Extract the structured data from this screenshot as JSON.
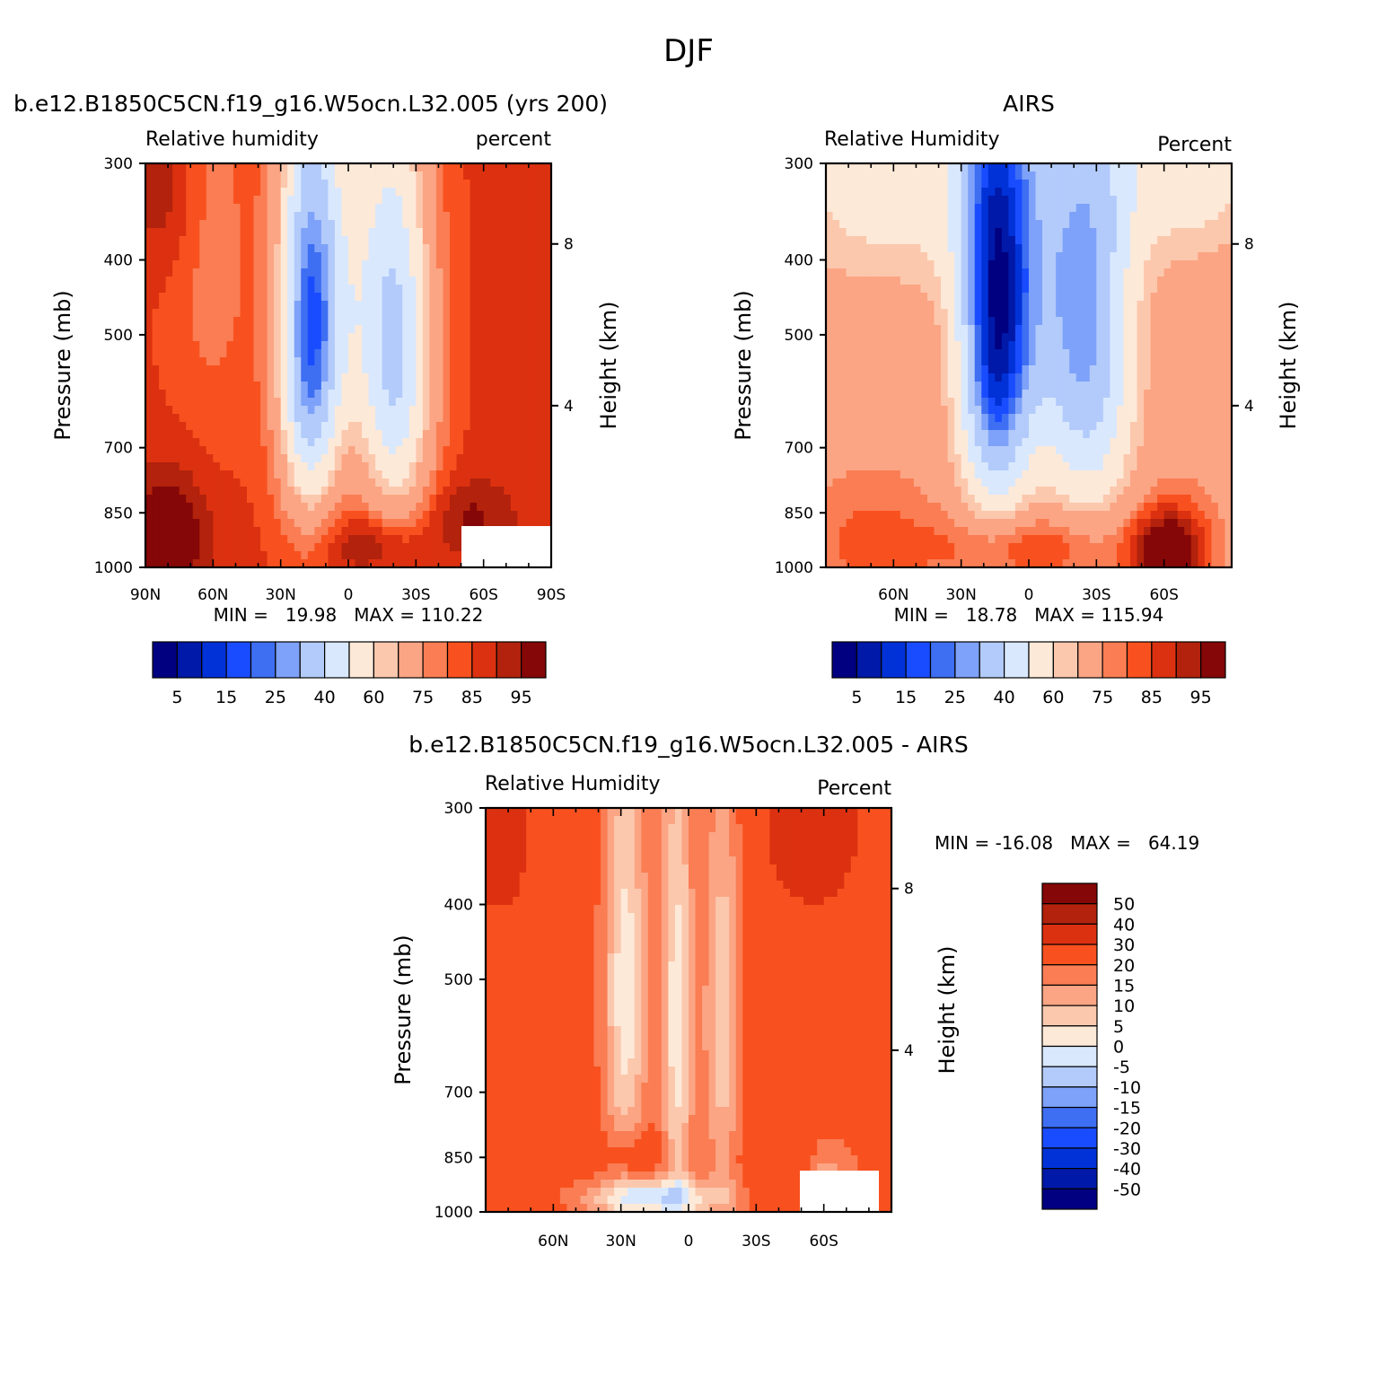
{
  "page_title": "DJF",
  "colors": {
    "rh": [
      "#000080",
      "#0019a8",
      "#0032d8",
      "#1a4cff",
      "#3e6ef2",
      "#7ea2f9",
      "#b3cbfb",
      "#d9e8fd",
      "#fde9d8",
      "#fcc8ad",
      "#fba584",
      "#fa7d54",
      "#f8511f",
      "#dc3110",
      "#b2220c",
      "#850707"
    ],
    "diff": [
      "#000080",
      "#0019a8",
      "#0032d8",
      "#1a4cff",
      "#3e6ef2",
      "#7ea2f9",
      "#b3cbfb",
      "#d9e8fd",
      "#fde9d8",
      "#fcc8ad",
      "#fba584",
      "#fa7d54",
      "#f8511f",
      "#dc3110",
      "#b2220c",
      "#850707"
    ]
  },
  "chart_data": [
    {
      "type": "heatmap",
      "panel": "model",
      "title": "b.e12.B1850C5CN.f19_g16.W5ocn.L32.005 (yrs 200)",
      "subtitle_left": "Relative humidity",
      "subtitle_right": "percent",
      "ylabel": "Pressure (mb)",
      "ylabel_right": "Height (km)",
      "y_ticks": [
        "300",
        "400",
        "500",
        "700",
        "850",
        "1000"
      ],
      "y_ticks_right": [
        "8",
        "4"
      ],
      "x_ticks": [
        "90N",
        "60N",
        "30N",
        "0",
        "30S",
        "60S",
        "90S"
      ],
      "stats": "MIN =   19.98   MAX = 110.22",
      "min": 19.98,
      "max": 110.22,
      "x_range": [
        90,
        -90
      ],
      "y_range": [
        300,
        1000
      ],
      "colorbar_labels": [
        "5",
        "15",
        "25",
        "40",
        "60",
        "75",
        "85",
        "95"
      ]
    },
    {
      "type": "heatmap",
      "panel": "obs",
      "title": "AIRS",
      "subtitle_left": "Relative Humidity",
      "subtitle_right": "Percent",
      "ylabel": "Pressure (mb)",
      "ylabel_right": "Height (km)",
      "y_ticks": [
        "300",
        "400",
        "500",
        "700",
        "850",
        "1000"
      ],
      "y_ticks_right": [
        "8",
        "4"
      ],
      "x_ticks": [
        "60N",
        "30N",
        "0",
        "30S",
        "60S"
      ],
      "stats": "MIN =   18.78   MAX = 115.94",
      "min": 18.78,
      "max": 115.94,
      "x_range": [
        90,
        -90
      ],
      "y_range": [
        300,
        1000
      ],
      "colorbar_labels": [
        "5",
        "15",
        "25",
        "40",
        "60",
        "75",
        "85",
        "95"
      ]
    },
    {
      "type": "heatmap",
      "panel": "difference",
      "title": "b.e12.B1850C5CN.f19_g16.W5ocn.L32.005 - AIRS",
      "subtitle_left": "Relative Humidity",
      "subtitle_right": "Percent",
      "ylabel": "Pressure (mb)",
      "ylabel_right": "Height (km)",
      "y_ticks": [
        "300",
        "400",
        "500",
        "700",
        "850",
        "1000"
      ],
      "y_ticks_right": [
        "8",
        "4"
      ],
      "x_ticks": [
        "60N",
        "30N",
        "0",
        "30S",
        "60S"
      ],
      "stats": "MIN = -16.08   MAX =   64.19",
      "min": -16.08,
      "max": 64.19,
      "x_range": [
        90,
        -90
      ],
      "y_range": [
        300,
        1000
      ],
      "colorbar_labels": [
        "50",
        "40",
        "30",
        "20",
        "15",
        "10",
        "5",
        "0",
        "-5",
        "-10",
        "-15",
        "-20",
        "-30",
        "-40",
        "-50"
      ]
    }
  ]
}
